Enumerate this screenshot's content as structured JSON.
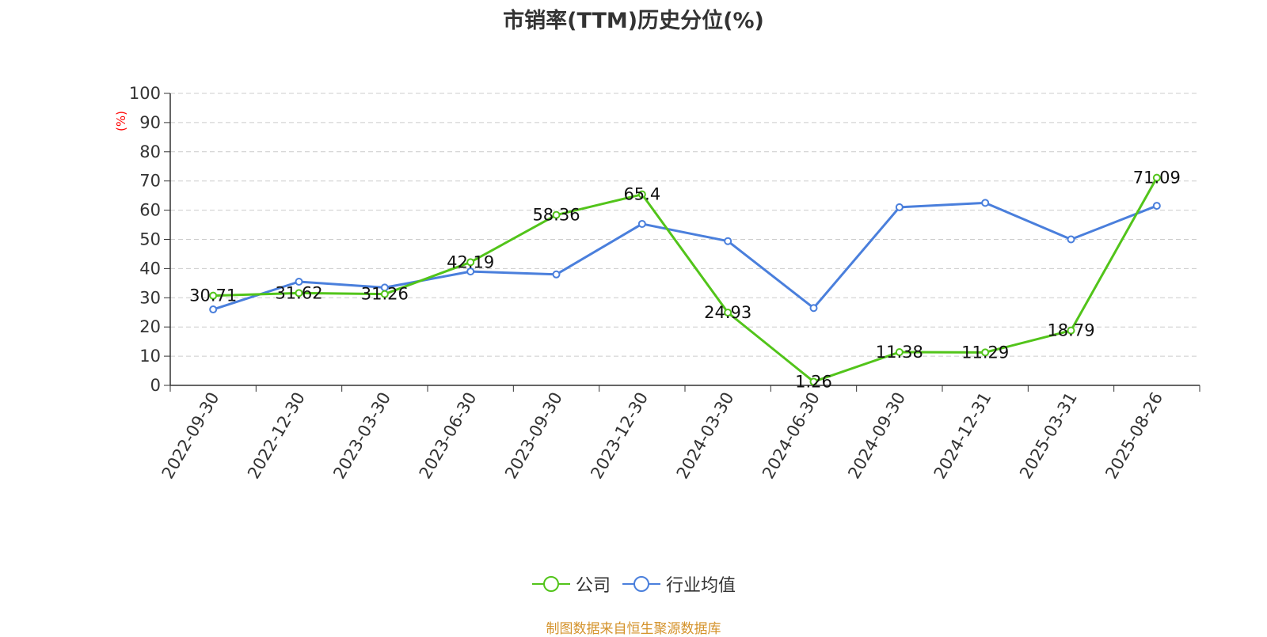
{
  "chart_data": {
    "type": "line",
    "title": "市销率(TTM)历史分位(%)",
    "ylabel": "(%)",
    "xlabel": "",
    "ylim": [
      0,
      100
    ],
    "yticks": [
      0,
      10,
      20,
      30,
      40,
      50,
      60,
      70,
      80,
      90,
      100
    ],
    "grid": true,
    "legend_position": "bottom",
    "categories": [
      "2022-09-30",
      "2022-12-30",
      "2023-03-30",
      "2023-06-30",
      "2023-09-30",
      "2023-12-30",
      "2024-03-30",
      "2024-06-30",
      "2024-09-30",
      "2024-12-31",
      "2025-03-31",
      "2025-08-26"
    ],
    "series": [
      {
        "name": "公司",
        "color": "#52c41a",
        "values": [
          30.71,
          31.62,
          31.26,
          42.19,
          58.36,
          65.4,
          24.93,
          1.26,
          11.38,
          11.29,
          18.79,
          71.09
        ],
        "labels": [
          "30.71",
          "31.62",
          "31.26",
          "42.19",
          "58.36",
          "65.4",
          "24.93",
          "1.26",
          "11.38",
          "11.29",
          "18.79",
          "71.09"
        ]
      },
      {
        "name": "行业均值",
        "color": "#4a7fdc",
        "values": [
          26,
          35.5,
          33.5,
          39,
          38,
          55.3,
          49.4,
          26.5,
          61,
          62.5,
          50,
          61.5
        ]
      }
    ]
  },
  "source_text": "制图数据来自恒生聚源数据库"
}
